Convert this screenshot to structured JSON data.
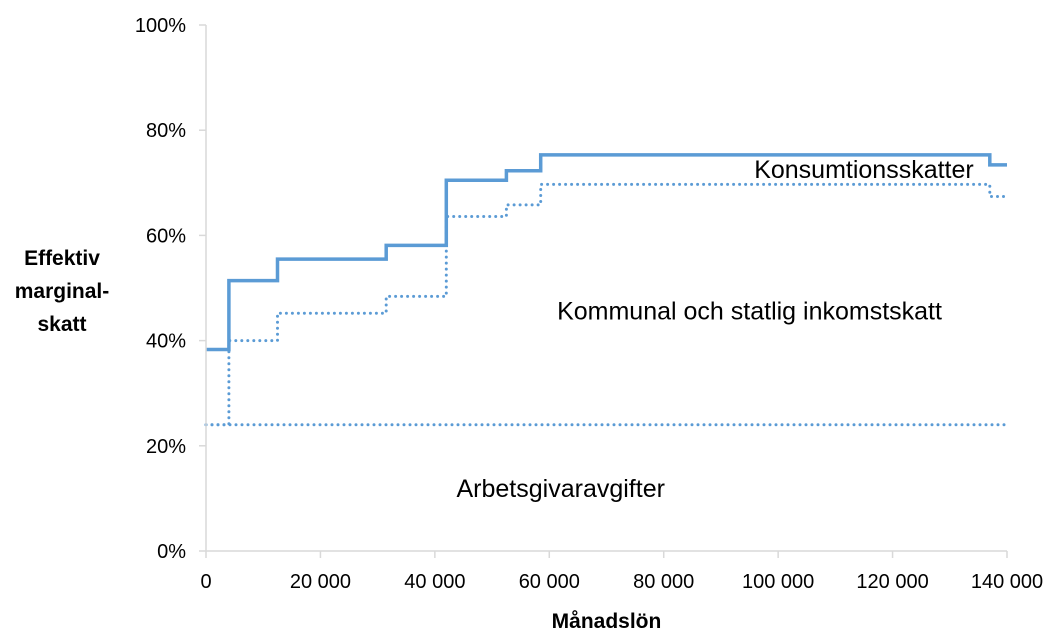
{
  "chart_data": {
    "type": "line",
    "xlabel": "Månadslön",
    "ylabel_lines": [
      "Effektiv",
      "marginal-",
      "skatt"
    ],
    "xlim": [
      0,
      140000
    ],
    "ylim": [
      0,
      1
    ],
    "x_ticks": [
      {
        "value": 0,
        "label": "0"
      },
      {
        "value": 20000,
        "label": "20 000"
      },
      {
        "value": 40000,
        "label": "40 000"
      },
      {
        "value": 60000,
        "label": "60 000"
      },
      {
        "value": 80000,
        "label": "80 000"
      },
      {
        "value": 100000,
        "label": "100 000"
      },
      {
        "value": 120000,
        "label": "120 000"
      },
      {
        "value": 140000,
        "label": "140 000"
      }
    ],
    "y_ticks": [
      {
        "value": 0,
        "label": "0%"
      },
      {
        "value": 0.2,
        "label": "20%"
      },
      {
        "value": 0.4,
        "label": "40%"
      },
      {
        "value": 0.6,
        "label": "60%"
      },
      {
        "value": 0.8,
        "label": "80%"
      },
      {
        "value": 1.0,
        "label": "100%"
      }
    ],
    "grid": false,
    "legend": "none",
    "series": [
      {
        "style": "solid",
        "color": "#5b9bd5",
        "points": [
          [
            0,
            0.383
          ],
          [
            4000,
            0.383
          ],
          [
            4000,
            0.514
          ],
          [
            12500,
            0.514
          ],
          [
            12500,
            0.555
          ],
          [
            31500,
            0.555
          ],
          [
            31500,
            0.581
          ],
          [
            42000,
            0.581
          ],
          [
            42000,
            0.705
          ],
          [
            52500,
            0.705
          ],
          [
            52500,
            0.723
          ],
          [
            58500,
            0.723
          ],
          [
            58500,
            0.753
          ],
          [
            137000,
            0.753
          ],
          [
            137000,
            0.734
          ],
          [
            140000,
            0.734
          ]
        ]
      },
      {
        "style": "dotted",
        "color": "#5b9bd5",
        "points": [
          [
            0,
            0.24
          ],
          [
            4000,
            0.24
          ],
          [
            4000,
            0.4
          ],
          [
            12500,
            0.4
          ],
          [
            12500,
            0.452
          ],
          [
            31500,
            0.452
          ],
          [
            31500,
            0.484
          ],
          [
            42000,
            0.484
          ],
          [
            42000,
            0.636
          ],
          [
            52500,
            0.636
          ],
          [
            52500,
            0.658
          ],
          [
            58500,
            0.658
          ],
          [
            58500,
            0.697
          ],
          [
            137000,
            0.697
          ],
          [
            137000,
            0.674
          ],
          [
            140000,
            0.674
          ]
        ]
      },
      {
        "style": "dotted",
        "color": "#5b9bd5",
        "points": [
          [
            0,
            0.24
          ],
          [
            140000,
            0.24
          ]
        ]
      }
    ],
    "annotations": [
      {
        "text": "Konsumtionsskatter",
        "x": 115000,
        "y": 0.726
      },
      {
        "text": "Kommunal och statlig inkomstskatt",
        "x": 95000,
        "y": 0.457
      },
      {
        "text": "Arbetsgivaravgifter",
        "x": 62000,
        "y": 0.12
      }
    ]
  }
}
